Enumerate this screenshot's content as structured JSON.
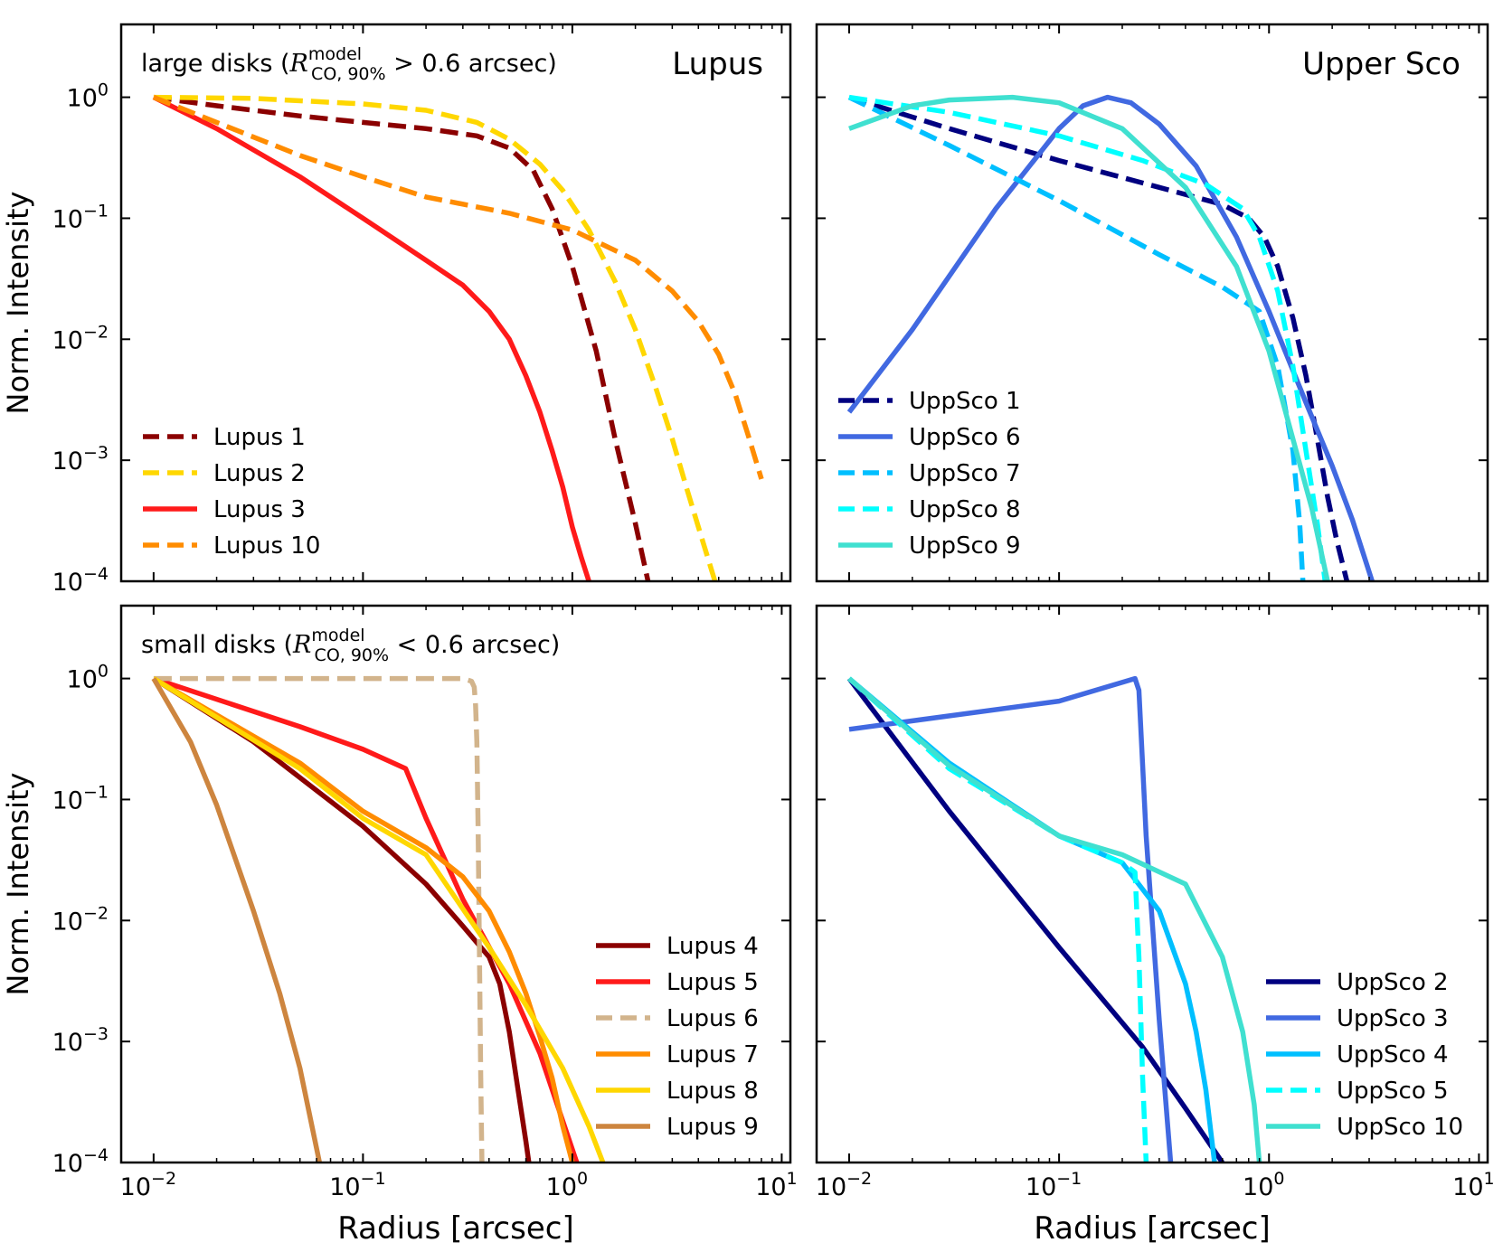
{
  "figure": {
    "x_axis": {
      "label": "Radius [arcsec]",
      "scale": "log",
      "range": [
        0.007,
        11
      ],
      "ticks": [
        0.01,
        0.1,
        1,
        10
      ],
      "tick_labels": [
        "10",
        "10",
        "10",
        "10"
      ],
      "tick_exps": [
        "−2",
        "−1",
        "0",
        "1"
      ]
    },
    "y_axis": {
      "label": "Norm. Intensity",
      "scale": "log",
      "range": [
        0.0001,
        4
      ],
      "ticks": [
        1,
        0.1,
        0.01,
        0.001,
        0.0001
      ],
      "tick_labels": [
        "10",
        "10",
        "10",
        "10",
        "10"
      ],
      "tick_exps": [
        "0",
        "−1",
        "−2",
        "−3",
        "−4"
      ]
    },
    "annotations": {
      "large_prefix": "large disks (",
      "small_prefix": "small disks (",
      "R": "R",
      "sup": "model",
      "sub": "CO, 90%",
      "gt_suffix": " > 0.6 arcsec)",
      "lt_suffix": " < 0.6 arcsec)"
    }
  },
  "chart_data": [
    {
      "type": "line",
      "panel": "top-left",
      "title": "Lupus",
      "subtitle_key": "large",
      "legend_loc": "lower-left",
      "ylabel": "Norm. Intensity",
      "xlabel": "",
      "series": [
        {
          "name": "Lupus 1",
          "color": "#8b0000",
          "dash": true,
          "x": [
            0.01,
            0.02,
            0.05,
            0.1,
            0.2,
            0.35,
            0.5,
            0.65,
            0.8,
            1.0,
            1.3,
            1.6,
            2.0,
            2.3
          ],
          "y": [
            1,
            0.85,
            0.7,
            0.62,
            0.55,
            0.48,
            0.38,
            0.25,
            0.12,
            0.04,
            0.008,
            0.0015,
            0.0003,
            0.0001
          ]
        },
        {
          "name": "Lupus 2",
          "color": "#ffd700",
          "dash": true,
          "x": [
            0.01,
            0.03,
            0.1,
            0.2,
            0.35,
            0.5,
            0.7,
            0.9,
            1.2,
            1.6,
            2.0,
            2.5,
            3.0,
            3.5,
            4.0,
            4.8
          ],
          "y": [
            1,
            0.98,
            0.88,
            0.78,
            0.62,
            0.45,
            0.28,
            0.17,
            0.08,
            0.03,
            0.012,
            0.004,
            0.0015,
            0.0006,
            0.00028,
            0.0001
          ]
        },
        {
          "name": "Lupus 3",
          "color": "#ff1a1a",
          "dash": false,
          "x": [
            0.01,
            0.02,
            0.05,
            0.1,
            0.2,
            0.3,
            0.4,
            0.5,
            0.6,
            0.7,
            0.8,
            0.9,
            1.0,
            1.1,
            1.2
          ],
          "y": [
            1,
            0.55,
            0.22,
            0.1,
            0.045,
            0.028,
            0.017,
            0.01,
            0.005,
            0.0025,
            0.0012,
            0.0006,
            0.00028,
            0.00016,
            0.0001
          ]
        },
        {
          "name": "Lupus 10",
          "color": "#ff8c00",
          "dash": true,
          "x": [
            0.01,
            0.02,
            0.05,
            0.1,
            0.2,
            0.5,
            1.0,
            2.0,
            3.0,
            4.0,
            5.0,
            6.0,
            7.0,
            8.0
          ],
          "y": [
            1,
            0.62,
            0.33,
            0.22,
            0.15,
            0.11,
            0.08,
            0.045,
            0.025,
            0.014,
            0.0075,
            0.0035,
            0.0015,
            0.0007
          ]
        }
      ]
    },
    {
      "type": "line",
      "panel": "top-right",
      "title": "Upper Sco",
      "legend_loc": "lower-left",
      "ylabel": "",
      "xlabel": "",
      "series": [
        {
          "name": "UppSco 1",
          "color": "#000080",
          "dash": true,
          "x": [
            0.01,
            0.03,
            0.1,
            0.3,
            0.6,
            0.8,
            0.95,
            1.1,
            1.3,
            1.5,
            1.7,
            1.9,
            2.1,
            2.35
          ],
          "y": [
            1,
            0.55,
            0.3,
            0.18,
            0.13,
            0.1,
            0.07,
            0.04,
            0.015,
            0.005,
            0.0015,
            0.0005,
            0.00022,
            0.0001
          ]
        },
        {
          "name": "UppSco 6",
          "color": "#4169e1",
          "dash": false,
          "x": [
            0.01,
            0.02,
            0.05,
            0.1,
            0.13,
            0.17,
            0.22,
            0.3,
            0.45,
            0.7,
            1.0,
            1.5,
            2.0,
            2.5,
            3.1
          ],
          "y": [
            0.0025,
            0.012,
            0.12,
            0.55,
            0.85,
            1.0,
            0.9,
            0.6,
            0.27,
            0.07,
            0.017,
            0.003,
            0.0009,
            0.00032,
            0.0001
          ]
        },
        {
          "name": "UppSco 7",
          "color": "#00bfff",
          "dash": true,
          "x": [
            0.01,
            0.03,
            0.1,
            0.3,
            0.6,
            0.9,
            1.1,
            1.3,
            1.4,
            1.45
          ],
          "y": [
            1,
            0.4,
            0.14,
            0.05,
            0.027,
            0.017,
            0.006,
            0.0012,
            0.0003,
            0.0001
          ]
        },
        {
          "name": "UppSco 8",
          "color": "#00ffff",
          "dash": true,
          "x": [
            0.01,
            0.03,
            0.1,
            0.25,
            0.5,
            0.75,
            0.9,
            1.1,
            1.3,
            1.5,
            1.7,
            1.85
          ],
          "y": [
            1,
            0.75,
            0.48,
            0.3,
            0.19,
            0.12,
            0.07,
            0.025,
            0.006,
            0.0012,
            0.0003,
            0.0001
          ]
        },
        {
          "name": "UppSco 9",
          "color": "#40e0d0",
          "dash": false,
          "x": [
            0.01,
            0.02,
            0.03,
            0.06,
            0.1,
            0.2,
            0.4,
            0.7,
            1.0,
            1.3,
            1.6,
            1.9
          ],
          "y": [
            0.55,
            0.85,
            0.95,
            1.0,
            0.9,
            0.55,
            0.18,
            0.04,
            0.008,
            0.0015,
            0.0004,
            0.0001
          ]
        }
      ]
    },
    {
      "type": "line",
      "panel": "bottom-left",
      "subtitle_key": "small",
      "legend_loc": "lower-right",
      "ylabel": "Norm. Intensity",
      "xlabel": "Radius [arcsec]",
      "series": [
        {
          "name": "Lupus 4",
          "color": "#8b0000",
          "dash": false,
          "x": [
            0.01,
            0.03,
            0.1,
            0.2,
            0.3,
            0.4,
            0.45,
            0.5,
            0.55,
            0.6,
            0.62
          ],
          "y": [
            1,
            0.3,
            0.06,
            0.02,
            0.009,
            0.005,
            0.003,
            0.0012,
            0.0004,
            0.00015,
            0.0001
          ]
        },
        {
          "name": "Lupus 5",
          "color": "#ff1a1a",
          "dash": false,
          "x": [
            0.01,
            0.05,
            0.1,
            0.16,
            0.2,
            0.3,
            0.5,
            0.7,
            1.05
          ],
          "y": [
            1,
            0.4,
            0.26,
            0.18,
            0.07,
            0.015,
            0.003,
            0.0008,
            0.0001
          ]
        },
        {
          "name": "Lupus 6",
          "color": "#d2b48c",
          "dash": true,
          "x": [
            0.01,
            0.1,
            0.3,
            0.33,
            0.34,
            0.345,
            0.35,
            0.355,
            0.36,
            0.365,
            0.37
          ],
          "y": [
            1,
            1,
            1,
            0.95,
            0.85,
            0.6,
            0.3,
            0.05,
            0.005,
            0.0005,
            0.0001
          ]
        },
        {
          "name": "Lupus 7",
          "color": "#ff8c00",
          "dash": false,
          "x": [
            0.01,
            0.05,
            0.1,
            0.2,
            0.3,
            0.4,
            0.5,
            0.6,
            0.7,
            0.8,
            0.9,
            1.0
          ],
          "y": [
            1,
            0.2,
            0.08,
            0.04,
            0.023,
            0.012,
            0.0055,
            0.0025,
            0.0011,
            0.0005,
            0.0002,
            0.0001
          ]
        },
        {
          "name": "Lupus 8",
          "color": "#ffd700",
          "dash": false,
          "x": [
            0.01,
            0.05,
            0.1,
            0.2,
            0.4,
            0.6,
            0.9,
            1.2,
            1.4
          ],
          "y": [
            1,
            0.18,
            0.07,
            0.035,
            0.006,
            0.002,
            0.0006,
            0.0002,
            0.0001
          ]
        },
        {
          "name": "Lupus 9",
          "color": "#cd853f",
          "dash": false,
          "x": [
            0.01,
            0.015,
            0.02,
            0.03,
            0.04,
            0.05,
            0.062
          ],
          "y": [
            1,
            0.3,
            0.09,
            0.012,
            0.0025,
            0.0006,
            0.0001
          ]
        }
      ]
    },
    {
      "type": "line",
      "panel": "bottom-right",
      "legend_loc": "lower-right",
      "ylabel": "",
      "xlabel": "Radius [arcsec]",
      "series": [
        {
          "name": "UppSco 2",
          "color": "#000080",
          "dash": false,
          "x": [
            0.01,
            0.03,
            0.1,
            0.25,
            0.4,
            0.6
          ],
          "y": [
            1,
            0.08,
            0.006,
            0.0009,
            0.00028,
            0.0001
          ]
        },
        {
          "name": "UppSco 3",
          "color": "#4169e1",
          "dash": false,
          "x": [
            0.01,
            0.1,
            0.23,
            0.24,
            0.26,
            0.3,
            0.34
          ],
          "y": [
            0.38,
            0.65,
            1.0,
            0.8,
            0.05,
            0.0015,
            0.0001
          ]
        },
        {
          "name": "UppSco 4",
          "color": "#00bfff",
          "dash": false,
          "x": [
            0.01,
            0.03,
            0.1,
            0.2,
            0.3,
            0.4,
            0.45,
            0.5,
            0.55
          ],
          "y": [
            1,
            0.2,
            0.05,
            0.03,
            0.012,
            0.003,
            0.0012,
            0.0004,
            0.0001
          ]
        },
        {
          "name": "UppSco 5",
          "color": "#00ffff",
          "dash": true,
          "x": [
            0.01,
            0.03,
            0.1,
            0.2,
            0.23,
            0.24,
            0.25,
            0.26
          ],
          "y": [
            1,
            0.18,
            0.05,
            0.03,
            0.025,
            0.005,
            0.0005,
            0.0001
          ]
        },
        {
          "name": "UppSco 10",
          "color": "#40e0d0",
          "dash": false,
          "x": [
            0.01,
            0.03,
            0.1,
            0.2,
            0.4,
            0.6,
            0.75,
            0.85,
            0.9
          ],
          "y": [
            1,
            0.19,
            0.05,
            0.035,
            0.02,
            0.005,
            0.0012,
            0.0003,
            0.0001
          ]
        }
      ]
    }
  ]
}
